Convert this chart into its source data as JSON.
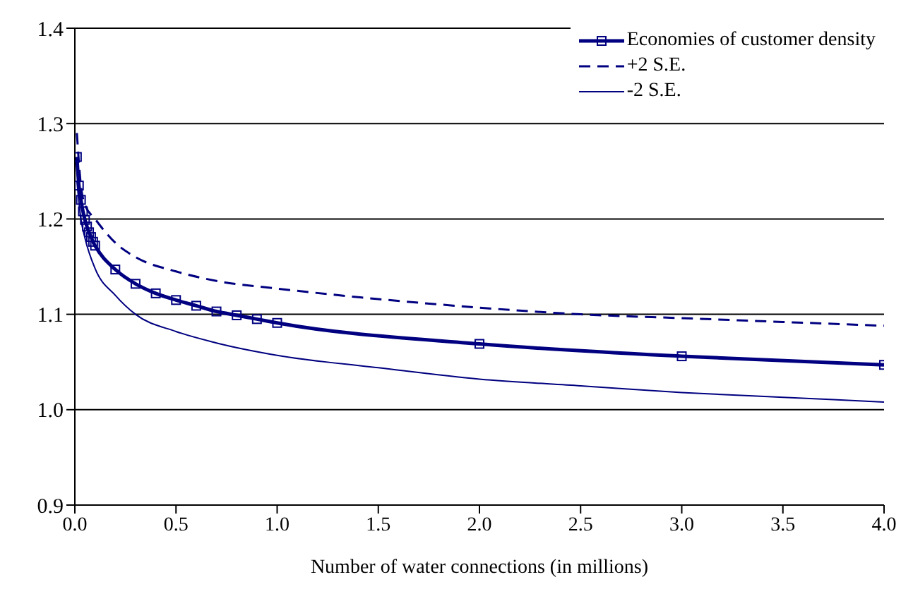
{
  "chart_data": {
    "type": "line",
    "xlabel": "Number of water connections (in millions)",
    "xlim": [
      0,
      4
    ],
    "xticks": [
      {
        "value": 0,
        "label": "0.0"
      },
      {
        "value": 0.5,
        "label": "0.5"
      },
      {
        "value": 1,
        "label": "1.0"
      },
      {
        "value": 1.5,
        "label": "1.5"
      },
      {
        "value": 2,
        "label": "2.0"
      },
      {
        "value": 2.5,
        "label": "2.5"
      },
      {
        "value": 3,
        "label": "3.0"
      },
      {
        "value": 3.5,
        "label": "3.5"
      },
      {
        "value": 4,
        "label": "4.0"
      }
    ],
    "ylim": [
      0.9,
      1.4
    ],
    "yticks": [
      {
        "value": 0.9,
        "label": "0.9"
      },
      {
        "value": 1,
        "label": "1.0"
      },
      {
        "value": 1.1,
        "label": "1.1"
      },
      {
        "value": 1.2,
        "label": "1.2"
      },
      {
        "value": 1.3,
        "label": "1.3"
      },
      {
        "value": 1.4,
        "label": "1.4"
      }
    ],
    "grid": "y",
    "legend": "top right",
    "series": [
      {
        "name": "Economies of customer density",
        "color": "#000080",
        "marker": "square",
        "line_style": "solid",
        "x": [
          0.01,
          0.02,
          0.03,
          0.04,
          0.05,
          0.06,
          0.07,
          0.08,
          0.09,
          0.1,
          0.2,
          0.3,
          0.4,
          0.5,
          0.6,
          0.7,
          0.8,
          0.9,
          1.0,
          2,
          3,
          4
        ],
        "values": [
          1.265,
          1.235,
          1.22,
          1.208,
          1.199,
          1.192,
          1.186,
          1.181,
          1.176,
          1.172,
          1.147,
          1.132,
          1.122,
          1.115,
          1.109,
          1.103,
          1.099,
          1.095,
          1.091,
          1.069,
          1.056,
          1.047
        ]
      },
      {
        "name": "+2 S.E.",
        "color": "#000080",
        "marker": "none",
        "line_style": "dashed",
        "x": [
          0.01,
          0.03,
          0.05,
          0.1,
          0.2,
          0.3,
          0.5,
          0.7,
          1,
          1.5,
          2,
          2.5,
          3,
          3.5,
          4
        ],
        "values": [
          1.29,
          1.235,
          1.215,
          1.2,
          1.175,
          1.16,
          1.145,
          1.135,
          1.127,
          1.116,
          1.107,
          1.1,
          1.096,
          1.092,
          1.088
        ]
      },
      {
        "name": "-2 S.E.",
        "color": "#000080",
        "marker": "none",
        "line_style": "solid",
        "x": [
          0.01,
          0.03,
          0.05,
          0.1,
          0.2,
          0.3,
          0.5,
          0.7,
          1,
          1.5,
          2,
          2.5,
          3,
          3.5,
          4
        ],
        "values": [
          1.24,
          1.2,
          1.18,
          1.148,
          1.12,
          1.1,
          1.082,
          1.07,
          1.057,
          1.044,
          1.032,
          1.025,
          1.018,
          1.013,
          1.008
        ]
      }
    ]
  }
}
